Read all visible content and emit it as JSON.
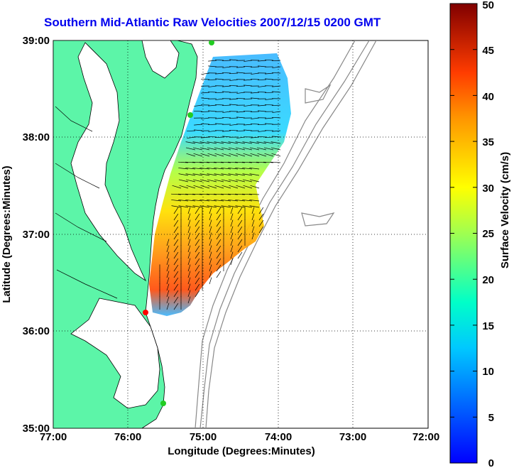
{
  "title": "Southern Mid-Atlantic Raw Velocities 2007/12/15 0200 GMT",
  "xlabel": "Longitude (Degrees:Minutes)",
  "ylabel": "Latitude (Degrees:Minutes)",
  "x_ticks": [
    "77:00",
    "76:00",
    "75:00",
    "74:00",
    "73:00",
    "72:00"
  ],
  "y_ticks": [
    "39:00",
    "38:00",
    "37:00",
    "36:00",
    "35:00"
  ],
  "colorbar": {
    "label": "Surface Velocity (cm/s)",
    "ticks": [
      "0",
      "5",
      "10",
      "15",
      "20",
      "25",
      "30",
      "35",
      "40",
      "45",
      "50"
    ],
    "range": [
      0,
      50
    ],
    "colormap": "jet"
  },
  "colors": {
    "land": "#5cf5a8",
    "coast": "#000000",
    "bathymetry": "#888888",
    "title": "#0000ee",
    "station_green": "#22cc22",
    "station_red": "#ff0000"
  }
}
